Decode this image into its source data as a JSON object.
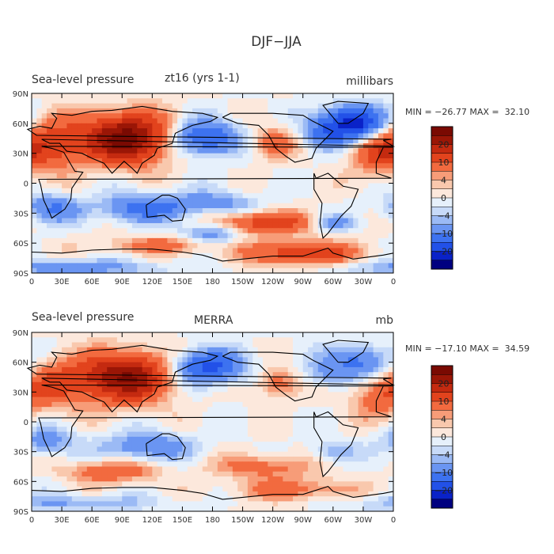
{
  "figure": {
    "title": "DJF−JJA"
  },
  "colorbar_levels": [
    "20",
    "10",
    "4",
    "0",
    "−4",
    "−10",
    "−20"
  ],
  "palette": [
    "#000080",
    "#0a22c8",
    "#2251e8",
    "#3d72f0",
    "#6a95f2",
    "#9bbaf5",
    "#c7daf8",
    "#e6f0fb",
    "#fce8dc",
    "#f9c8ad",
    "#f79c78",
    "#f26a3f",
    "#e2431d",
    "#c42a10",
    "#9a1606",
    "#7a0a02"
  ],
  "panels": [
    {
      "left_title": "Sea-level pressure",
      "center_title": "zt16 (yrs 1-1)",
      "units": "millibars",
      "stats": "MIN = −26.77 MAX =  32.10",
      "min": -26.77,
      "max": 32.1,
      "seed": 7
    },
    {
      "left_title": "Sea-level pressure",
      "center_title": "MERRA",
      "units": "mb",
      "stats": "MIN = −17.10 MAX =  34.59",
      "min": -17.1,
      "max": 34.59,
      "seed": 13
    }
  ],
  "lat_ticks": [
    "90N",
    "60N",
    "30N",
    "0",
    "30S",
    "60S",
    "90S"
  ],
  "lon_ticks": [
    "0",
    "30E",
    "60E",
    "90E",
    "120E",
    "150E",
    "180",
    "150W",
    "120W",
    "90W",
    "60W",
    "30W",
    "0"
  ]
}
